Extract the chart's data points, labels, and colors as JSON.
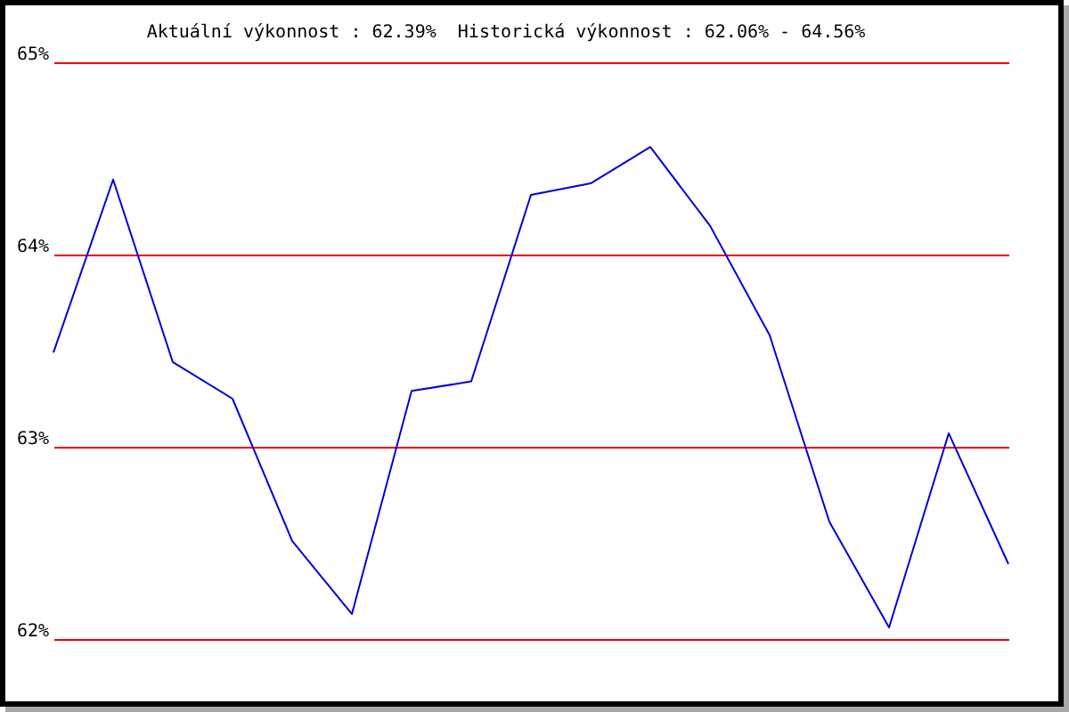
{
  "chart_data": {
    "type": "line",
    "title": "Aktuální výkonnost : 62.39%  Historická výkonnost : 62.06% - 64.56%",
    "categories": [
      null,
      null,
      null,
      null,
      null,
      null,
      null,
      null,
      null,
      null,
      null,
      null,
      null,
      null,
      null,
      null,
      null
    ],
    "series": [
      {
        "color": "#0000dd",
        "values": [
          63.49,
          64.39,
          63.44,
          63.25,
          62.51,
          62.13,
          63.29,
          63.34,
          64.31,
          64.37,
          64.56,
          64.15,
          63.58,
          62.61,
          62.06,
          63.07,
          62.39
        ]
      }
    ],
    "ylim": [
      62,
      65
    ],
    "yticks": [
      {
        "value": 62,
        "label": "62%"
      },
      {
        "value": 63,
        "label": "63%"
      },
      {
        "value": 64,
        "label": "64%"
      },
      {
        "value": 65,
        "label": "65%"
      }
    ],
    "grid": "y",
    "tick_labels": "y"
  }
}
